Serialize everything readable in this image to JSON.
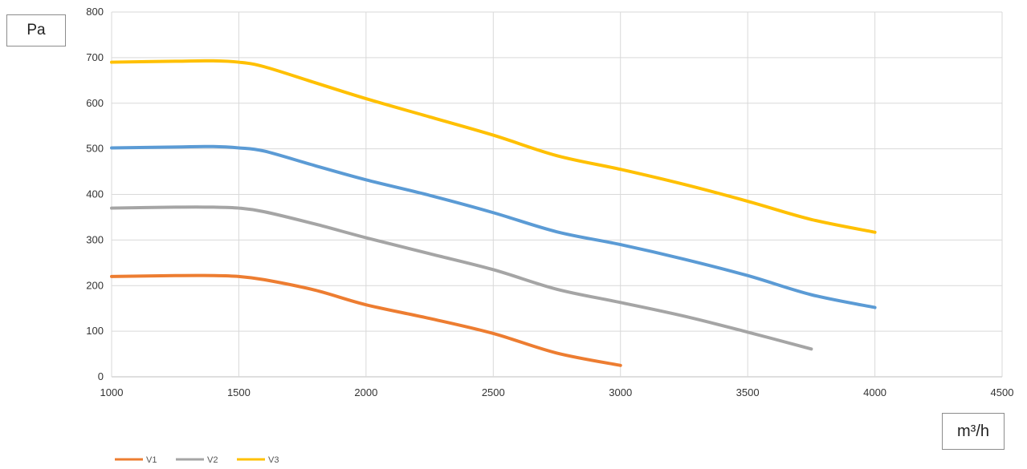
{
  "chart_data": {
    "type": "line",
    "title": "",
    "ylabel": "Pa",
    "xlabel": "m³/h",
    "xlim": [
      1000,
      4500
    ],
    "ylim": [
      0,
      800
    ],
    "x_ticks": [
      1000,
      1500,
      2000,
      2500,
      3000,
      3500,
      4000,
      4500
    ],
    "y_ticks": [
      0,
      100,
      200,
      300,
      400,
      500,
      600,
      700,
      800
    ],
    "grid": true,
    "legend_position": "bottom-left",
    "series": [
      {
        "name": "V1",
        "color": "#ed7d31",
        "points": [
          [
            1000,
            220
          ],
          [
            1250,
            222
          ],
          [
            1400,
            222
          ],
          [
            1500,
            220
          ],
          [
            1600,
            213
          ],
          [
            1800,
            190
          ],
          [
            2000,
            158
          ],
          [
            2250,
            128
          ],
          [
            2500,
            95
          ],
          [
            2750,
            52
          ],
          [
            3000,
            25
          ]
        ]
      },
      {
        "name": "V2",
        "color": "#a5a5a5",
        "points": [
          [
            1000,
            370
          ],
          [
            1250,
            372
          ],
          [
            1400,
            372
          ],
          [
            1500,
            370
          ],
          [
            1600,
            362
          ],
          [
            1800,
            335
          ],
          [
            2000,
            305
          ],
          [
            2250,
            270
          ],
          [
            2500,
            235
          ],
          [
            2750,
            192
          ],
          [
            3000,
            163
          ],
          [
            3250,
            133
          ],
          [
            3500,
            98
          ],
          [
            3750,
            61
          ]
        ]
      },
      {
        "name": "V3",
        "color": "#ffc000",
        "points": [
          [
            1000,
            690
          ],
          [
            1250,
            692
          ],
          [
            1400,
            693
          ],
          [
            1500,
            690
          ],
          [
            1600,
            680
          ],
          [
            1800,
            645
          ],
          [
            2000,
            610
          ],
          [
            2250,
            570
          ],
          [
            2500,
            530
          ],
          [
            2750,
            485
          ],
          [
            3000,
            455
          ],
          [
            3250,
            422
          ],
          [
            3500,
            385
          ],
          [
            3750,
            345
          ],
          [
            4000,
            317
          ]
        ]
      },
      {
        "name": "",
        "color": "#5b9bd5",
        "points": [
          [
            1000,
            502
          ],
          [
            1250,
            504
          ],
          [
            1400,
            505
          ],
          [
            1500,
            502
          ],
          [
            1600,
            495
          ],
          [
            1800,
            463
          ],
          [
            2000,
            432
          ],
          [
            2250,
            398
          ],
          [
            2500,
            360
          ],
          [
            2750,
            318
          ],
          [
            3000,
            290
          ],
          [
            3250,
            258
          ],
          [
            3500,
            222
          ],
          [
            3750,
            180
          ],
          [
            4000,
            152
          ]
        ]
      }
    ]
  }
}
